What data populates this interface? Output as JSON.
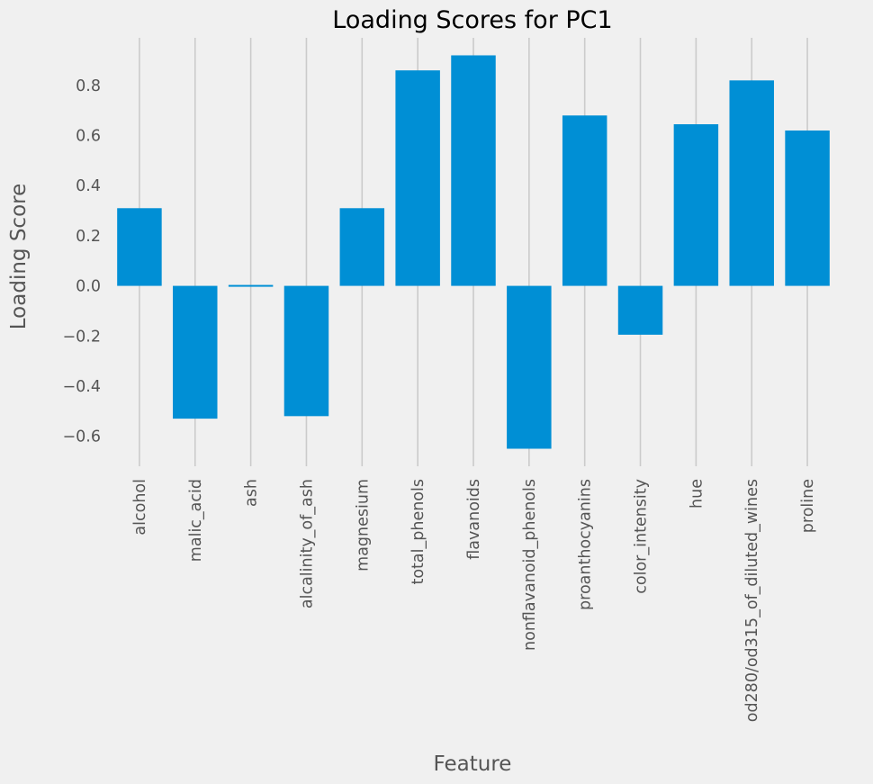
{
  "chart_data": {
    "type": "bar",
    "title": "Loading Scores for PC1",
    "xlabel": "Feature",
    "ylabel": "Loading Score",
    "categories": [
      "alcohol",
      "malic_acid",
      "ash",
      "alcalinity_of_ash",
      "magnesium",
      "total_phenols",
      "flavanoids",
      "nonflavanoid_phenols",
      "proanthocyanins",
      "color_intensity",
      "hue",
      "od280/od315_of_diluted_wines",
      "proline"
    ],
    "values": [
      0.31,
      -0.53,
      -0.005,
      -0.52,
      0.31,
      0.86,
      0.92,
      -0.65,
      0.68,
      -0.195,
      0.645,
      0.82,
      0.62
    ],
    "yticks": [
      -0.6,
      -0.4,
      -0.2,
      0.0,
      0.2,
      0.4,
      0.6,
      0.8
    ],
    "ytick_labels": [
      "−0.6",
      "−0.4",
      "−0.2",
      "0.0",
      "0.2",
      "0.4",
      "0.6",
      "0.8"
    ],
    "ylim": [
      -0.72,
      0.99
    ],
    "grid": true,
    "bar_color": "#008fd5",
    "background_color": "#f0f0f0",
    "grid_color": "#cbcbcb"
  }
}
